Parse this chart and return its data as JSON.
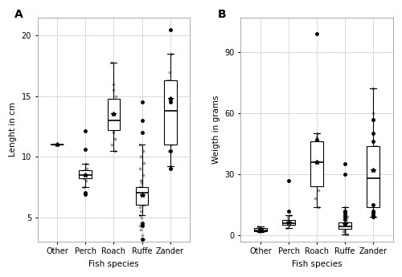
{
  "species": [
    "Other",
    "Perch",
    "Roach",
    "Ruffe",
    "Zander"
  ],
  "panel_A_label": "A",
  "panel_B_label": "B",
  "ylabel_A": "Lenght in cm",
  "ylabel_B": "Weigth in grams",
  "xlabel": "Fish species",
  "ylim_A": [
    3,
    21.5
  ],
  "ylim_B": [
    -3,
    107
  ],
  "yticks_A": [
    5,
    10,
    15,
    20
  ],
  "yticks_B": [
    0,
    30,
    60,
    90
  ],
  "background_color": "#ffffff",
  "box_A": {
    "Other": {
      "q1": 11.0,
      "median": 11.0,
      "q3": 11.0,
      "whislo": 11.0,
      "whishi": 11.0,
      "mean": 11.0,
      "fliers": []
    },
    "Perch": {
      "q1": 8.2,
      "median": 8.5,
      "q3": 8.9,
      "whislo": 7.5,
      "whishi": 9.4,
      "mean": 8.5,
      "fliers": [
        6.9,
        7.0,
        10.6,
        12.1
      ]
    },
    "Roach": {
      "q1": 12.2,
      "median": 13.0,
      "q3": 14.8,
      "whislo": 10.5,
      "whishi": 17.8,
      "mean": 13.5,
      "fliers": []
    },
    "Ruffe": {
      "q1": 6.0,
      "median": 7.0,
      "q3": 7.5,
      "whislo": 5.2,
      "whishi": 11.0,
      "mean": 6.8,
      "fliers": [
        14.5,
        13.0,
        12.0,
        4.5,
        4.3,
        3.2
      ]
    },
    "Zander": {
      "q1": 11.0,
      "median": 13.8,
      "q3": 16.3,
      "whislo": 9.2,
      "whishi": 18.5,
      "mean": 14.8,
      "fliers": [
        9.0,
        14.5,
        10.5,
        20.5
      ]
    }
  },
  "box_B": {
    "Other": {
      "q1": 2.0,
      "median": 2.5,
      "q3": 3.5,
      "whislo": 1.5,
      "whishi": 4.5,
      "mean": 2.8,
      "fliers": []
    },
    "Perch": {
      "q1": 5.0,
      "median": 6.0,
      "q3": 7.5,
      "whislo": 3.5,
      "whishi": 10.0,
      "mean": 6.5,
      "fliers": [
        12.0,
        27.0
      ]
    },
    "Roach": {
      "q1": 24.0,
      "median": 36.0,
      "q3": 46.0,
      "whislo": 14.0,
      "whishi": 50.0,
      "mean": 36.0,
      "fliers": [
        99.0,
        47.0
      ]
    },
    "Ruffe": {
      "q1": 3.0,
      "median": 4.5,
      "q3": 6.5,
      "whislo": 0.5,
      "whishi": 14.0,
      "mean": 5.5,
      "fliers": [
        35.0,
        30.0,
        12.0,
        11.0,
        10.0,
        9.0,
        8.0
      ]
    },
    "Zander": {
      "q1": 14.0,
      "median": 28.0,
      "q3": 44.0,
      "whislo": 9.0,
      "whishi": 72.0,
      "mean": 32.0,
      "fliers": [
        57.0,
        50.0,
        46.0,
        15.0,
        12.0,
        11.0,
        10.0,
        9.0
      ]
    }
  },
  "grey_dots_A": {
    "Ruffe": [
      3.2,
      3.5,
      4.0,
      4.3,
      4.5,
      5.0,
      5.2,
      5.5,
      5.8,
      6.0,
      6.0,
      6.2,
      6.3,
      6.5,
      6.5,
      6.8,
      7.0,
      7.0,
      7.0,
      7.2,
      7.3,
      7.5,
      7.5,
      7.8,
      8.0,
      8.0,
      8.5,
      9.0,
      9.5,
      10.0,
      10.5,
      11.0
    ],
    "Roach": [
      10.5,
      11.0,
      11.5,
      12.0,
      12.2,
      12.5,
      13.0,
      13.5,
      14.0,
      14.5,
      15.0,
      15.5,
      16.0,
      17.8
    ],
    "Zander": [
      9.0,
      9.2,
      10.5,
      11.0,
      12.0,
      13.0,
      13.8,
      14.0,
      14.5,
      15.0,
      16.0,
      16.3,
      17.0,
      18.5
    ],
    "Perch": [
      7.5,
      8.0,
      8.2,
      8.5,
      8.9,
      9.0,
      9.4
    ],
    "Other": [
      11.0
    ]
  },
  "grey_dots_B": {
    "Ruffe": [
      0.5,
      1.0,
      1.5,
      2.0,
      2.5,
      3.0,
      3.5,
      4.0,
      4.5,
      5.0,
      5.5,
      6.0,
      6.5,
      7.0,
      7.5,
      8.0,
      9.0,
      10.0,
      11.0,
      12.0,
      14.0
    ],
    "Roach": [
      14.0,
      18.0,
      22.0,
      26.0,
      30.0,
      35.0,
      40.0,
      44.0,
      48.0,
      50.0
    ],
    "Zander": [
      9.0,
      12.0,
      16.0,
      20.0,
      25.0,
      28.0,
      35.0,
      40.0,
      44.0,
      60.0,
      72.0
    ],
    "Perch": [
      3.5,
      5.0,
      6.0,
      7.5,
      9.0,
      10.0
    ],
    "Other": [
      1.5,
      2.0,
      2.5,
      3.0,
      3.5,
      4.0,
      4.5
    ]
  }
}
